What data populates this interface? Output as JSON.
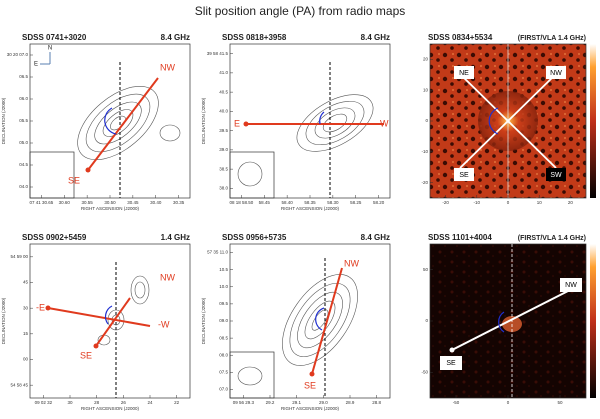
{
  "title": "Slit position angle (PA) from radio maps",
  "panels": [
    {
      "name": "SDSS 0741+3020",
      "freq": "8.4 GHz",
      "compass": [
        "N",
        "E"
      ],
      "labels": [
        "NW",
        "SE"
      ],
      "xlabel": "RIGHT ASCENSION (J2000)",
      "ylabel": "DECLINATION (J2000)",
      "xticks": [
        "07 41 30.65",
        "30.60",
        "30.55",
        "30.50",
        "30.45",
        "30.40",
        "30.35"
      ],
      "yticks": [
        "30 20 07.0",
        "06.5",
        "06.0",
        "05.5",
        "05.0",
        "04.5",
        "04.0"
      ]
    },
    {
      "name": "SDSS 0818+3958",
      "freq": "8.4 GHz",
      "labels": [
        "E",
        "W"
      ],
      "xlabel": "RIGHT ASCENSION (J2000)",
      "ylabel": "DECLINATION (J2000)",
      "xticks": [
        "08 18 58.50",
        "58.45",
        "58.40",
        "58.35",
        "58.30",
        "58.25",
        "58.20"
      ],
      "yticks": [
        "39 58 41.5",
        "41.0",
        "40.5",
        "40.0",
        "39.5",
        "39.0",
        "38.5",
        "38.0"
      ]
    },
    {
      "name": "SDSS 0834+5534",
      "freq": "(FIRST/VLA 1.4 GHz)",
      "labels": [
        "NE",
        "NW",
        "SE",
        "SW"
      ],
      "xticks": [
        "-20",
        "-10",
        "0",
        "10",
        "20"
      ],
      "yticks": [
        "20",
        "10",
        "0",
        "-10",
        "-20"
      ]
    },
    {
      "name": "SDSS 0902+5459",
      "freq": "1.4 GHz",
      "labels": [
        "NW",
        "-E",
        "-W",
        "SE"
      ],
      "xlabel": "RIGHT ASCENSION (J2000)",
      "ylabel": "DECLINATION (J2000)",
      "xticks": [
        "09 02 32",
        "30",
        "28",
        "26",
        "24",
        "22"
      ],
      "yticks": [
        "54 59 00",
        "45",
        "30",
        "15",
        "00",
        "54 58 45"
      ]
    },
    {
      "name": "SDSS 0956+5735",
      "freq": "8.4 GHz",
      "labels": [
        "NW",
        "SE"
      ],
      "xlabel": "RIGHT ASCENSION (J2000)",
      "ylabel": "DECLINATION (J2000)",
      "xticks": [
        "09 56 29.3",
        "29.2",
        "29.1",
        "29.0",
        "28.9",
        "28.8"
      ],
      "yticks": [
        "57 35 11.0",
        "10.5",
        "10.0",
        "09.5",
        "09.0",
        "08.5",
        "08.0",
        "07.5",
        "07.0"
      ]
    },
    {
      "name": "SDSS 1101+4004",
      "freq": "(FIRST/VLA 1.4 GHz)",
      "labels": [
        "NW",
        "SE"
      ],
      "xticks": [
        "-50",
        "0",
        "50"
      ],
      "yticks": [
        "50",
        "0",
        "-50"
      ]
    }
  ]
}
